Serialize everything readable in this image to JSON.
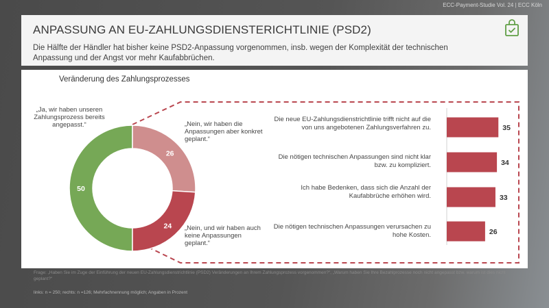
{
  "topbar": {
    "text": "ECC-Payment-Studie Vol. 24 | ECC Köln"
  },
  "header": {
    "title": "ANPASSUNG AN EU-ZAHLUNGSDIENSTERICHTLINIE (PSD2)",
    "subtitle": "Die Hälfte der Händler hat bisher keine PSD2-Anpassung  vorgenommen, insb. wegen der Komplexität der technischen Anpassung und der Angst vor mehr Kaufabbrüchen.",
    "icon": "shopping-bag-check-icon",
    "icon_color": "#5f9e45"
  },
  "colors": {
    "green": "#76a856",
    "pink": "#cf8e8e",
    "red": "#b9464f"
  },
  "chart_data": [
    {
      "type": "pie",
      "title": "Veränderung des Zahlungsprozesses",
      "slices": [
        {
          "label": "„Ja, wir haben unseren Zahlungsprozess bereits angepasst.“",
          "value": 50,
          "color": "#76a856"
        },
        {
          "label": "„Nein, wir haben die Anpassungen aber konkret geplant.“",
          "value": 26,
          "color": "#cf8e8e"
        },
        {
          "label": "„Nein, und wir haben auch keine Anpassungen geplant.“",
          "value": 24,
          "color": "#b9464f"
        }
      ]
    },
    {
      "type": "bar",
      "orientation": "horizontal",
      "categories": [
        "Die neue EU-Zahlungsdienstrichtlinie trifft nicht auf die von uns angebotenen Zahlungsverfahren zu.",
        "Die nötigen technischen Anpassungen sind nicht klar bzw. zu kompliziert.",
        "Ich habe Bedenken, dass sich die Anzahl der Kaufabbrüche erhöhen wird.",
        "Die nötigen technischen Anpassungen verursachen zu hohe Kosten."
      ],
      "values": [
        35,
        34,
        33,
        26
      ],
      "color": "#b9464f"
    }
  ],
  "footnotes": {
    "question": "Frage: „Haben Sie im Zuge der Einführung der neuen EU-Zahlungsdienstrichtlinie (PSD2) Veränderungen an Ihrem Zahlungsprozess vorgenommen?“, „Warum haben Sie Ihre Bezahlprozesse noch nicht angepasst bzw. warum ist dies nicht geplant?“",
    "sample": "links: n = 250; rechts: n =126; Mehrfachnennung möglich; Angaben in Prozent"
  }
}
